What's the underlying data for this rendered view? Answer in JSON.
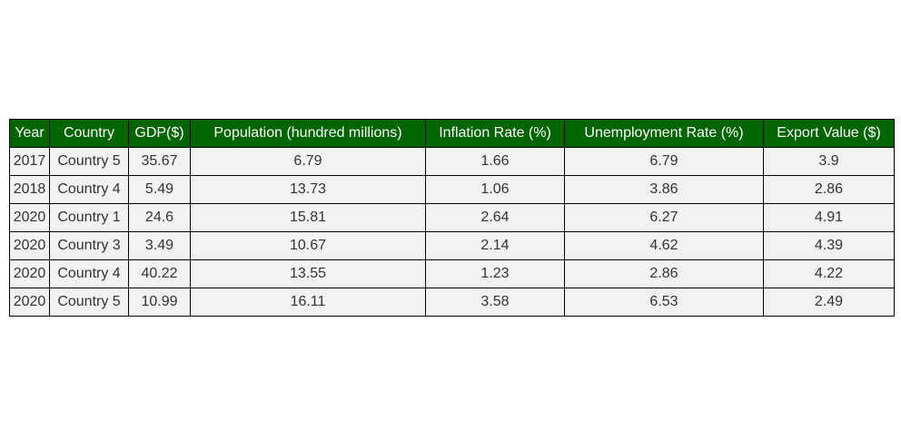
{
  "chart_data": {
    "type": "table",
    "columns": [
      "Year",
      "Country",
      "GDP($)",
      "Population (hundred millions)",
      "Inflation Rate (%)",
      "Unemployment Rate (%)",
      "Export Value ($)"
    ],
    "rows": [
      [
        "2017",
        "Country 5",
        "35.67",
        "6.79",
        "1.66",
        "6.79",
        "3.9"
      ],
      [
        "2018",
        "Country 4",
        "5.49",
        "13.73",
        "1.06",
        "3.86",
        "2.86"
      ],
      [
        "2020",
        "Country 1",
        "24.6",
        "15.81",
        "2.64",
        "6.27",
        "4.91"
      ],
      [
        "2020",
        "Country 3",
        "3.49",
        "10.67",
        "2.14",
        "4.62",
        "4.39"
      ],
      [
        "2020",
        "Country 4",
        "40.22",
        "13.55",
        "1.23",
        "2.86",
        "4.22"
      ],
      [
        "2020",
        "Country 5",
        "10.99",
        "16.11",
        "3.58",
        "6.53",
        "2.49"
      ]
    ],
    "colors": {
      "header_background": "#006400",
      "header_text": "#ffffff",
      "cell_background": "#f2f2f2",
      "border": "#000000"
    }
  }
}
